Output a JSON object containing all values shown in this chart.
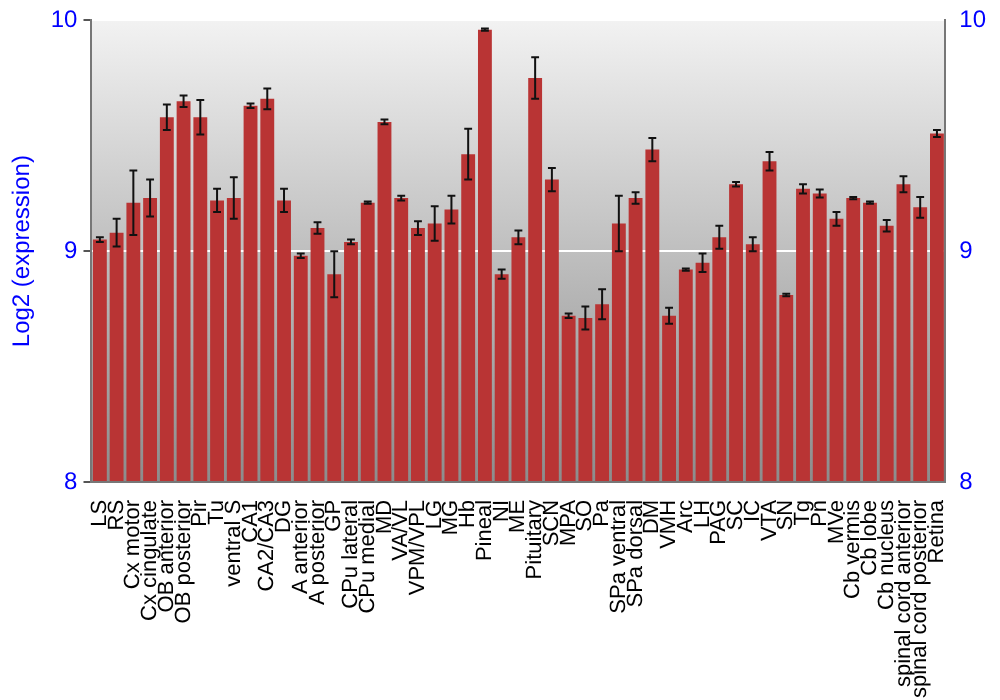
{
  "chart_data": {
    "type": "bar",
    "ylabel": "Log2 (expression)",
    "categories": [
      "LS",
      "RS",
      "Cx motor",
      "Cx cingulate",
      "OB anterior",
      "OB posterior",
      "Pir",
      "Tu",
      "ventral S",
      "CA1",
      "CA2/CA3",
      "DG",
      "A anterior",
      "A posterior",
      "GP",
      "CPu lateral",
      "CPu medial",
      "MD",
      "VA/VL",
      "VPM/VPL",
      "LG",
      "MG",
      "Hb",
      "Pineal",
      "NI",
      "ME",
      "Pituitary",
      "SCN",
      "MPA",
      "SO",
      "Pa",
      "SPa ventral",
      "SPa dorsal",
      "DM",
      "VMH",
      "Arc",
      "LH",
      "PAG",
      "SC",
      "IC",
      "VTA",
      "SN",
      "Tg",
      "Pn",
      "MVe",
      "Cb vermis",
      "Cb lobe",
      "Cb nucleus",
      "spinal cord anterior",
      "spinal cord posterior",
      "Retina"
    ],
    "values": [
      9.05,
      9.08,
      9.21,
      9.23,
      9.58,
      9.65,
      9.58,
      9.22,
      9.23,
      9.63,
      9.66,
      9.22,
      8.98,
      9.1,
      8.9,
      9.04,
      9.21,
      9.56,
      9.23,
      9.1,
      9.12,
      9.18,
      9.42,
      9.96,
      8.9,
      9.06,
      9.75,
      9.31,
      8.72,
      8.71,
      8.77,
      9.12,
      9.23,
      9.44,
      8.72,
      8.92,
      8.95,
      9.06,
      9.29,
      9.03,
      9.39,
      8.81,
      9.27,
      9.25,
      9.14,
      9.23,
      9.21,
      9.11,
      9.29,
      9.19,
      9.51
    ],
    "errors": [
      0.01,
      0.06,
      0.14,
      0.08,
      0.055,
      0.025,
      0.075,
      0.05,
      0.09,
      0.01,
      0.045,
      0.05,
      0.01,
      0.025,
      0.1,
      0.01,
      0.005,
      0.01,
      0.01,
      0.03,
      0.075,
      0.06,
      0.11,
      0.005,
      0.02,
      0.03,
      0.09,
      0.05,
      0.01,
      0.05,
      0.065,
      0.12,
      0.025,
      0.05,
      0.035,
      0.005,
      0.04,
      0.05,
      0.01,
      0.03,
      0.04,
      0.005,
      0.02,
      0.017,
      0.03,
      0.005,
      0.005,
      0.025,
      0.035,
      0.045,
      0.015
    ],
    "color": "#b93434",
    "ylim": [
      8,
      10
    ],
    "yticks": [
      8,
      9,
      10
    ],
    "y2lim": [
      8,
      10
    ],
    "y2ticks": [
      8,
      9,
      10
    ],
    "grid": "y"
  }
}
